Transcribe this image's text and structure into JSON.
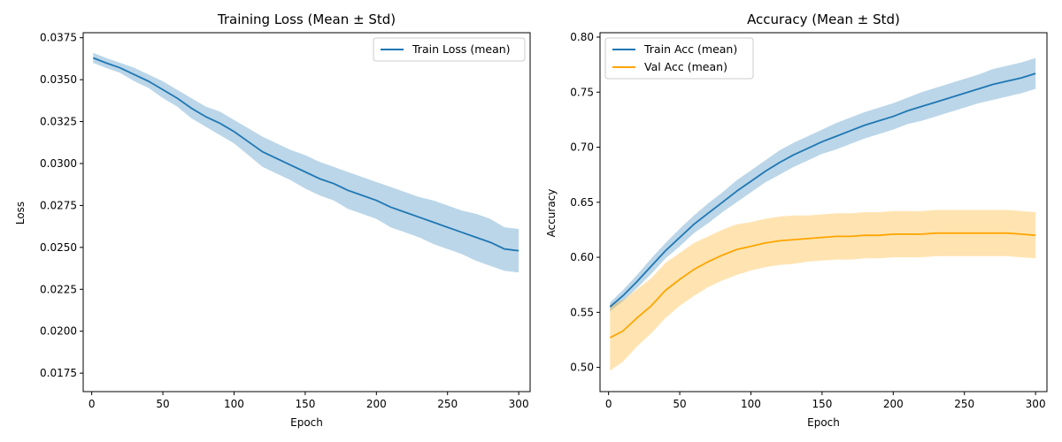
{
  "chart_data": [
    {
      "type": "line",
      "title": "Training Loss (Mean ± Std)",
      "xlabel": "Epoch",
      "ylabel": "Loss",
      "xlim": [
        -6,
        308
      ],
      "ylim": [
        0.0164,
        0.0378
      ],
      "xticks": [
        0,
        50,
        100,
        150,
        200,
        250,
        300
      ],
      "yticks": [
        0.0175,
        0.02,
        0.0225,
        0.025,
        0.0275,
        0.03,
        0.0325,
        0.035,
        0.0375
      ],
      "ytick_labels": [
        "0.0175",
        "0.0200",
        "0.0225",
        "0.0250",
        "0.0275",
        "0.0300",
        "0.0325",
        "0.0350",
        "0.0375"
      ],
      "legend_position": "upper right",
      "series": [
        {
          "name": "Train Loss (mean)",
          "color": "#1f77b4",
          "band_color": "#1f77b4",
          "x": [
            1,
            10,
            20,
            30,
            40,
            50,
            60,
            70,
            80,
            90,
            100,
            110,
            120,
            130,
            140,
            150,
            160,
            170,
            180,
            190,
            200,
            210,
            220,
            230,
            240,
            250,
            260,
            270,
            280,
            290,
            300
          ],
          "y": [
            0.0363,
            0.036,
            0.0357,
            0.0353,
            0.0349,
            0.0344,
            0.0339,
            0.0333,
            0.0328,
            0.0324,
            0.0319,
            0.0313,
            0.0307,
            0.0303,
            0.0299,
            0.0295,
            0.0291,
            0.0288,
            0.0284,
            0.0281,
            0.0278,
            0.0274,
            0.0271,
            0.0268,
            0.0265,
            0.0262,
            0.0259,
            0.0256,
            0.0253,
            0.0249,
            0.0248
          ],
          "std": [
            0.0003,
            0.0003,
            0.0003,
            0.0004,
            0.0004,
            0.0005,
            0.0005,
            0.0006,
            0.0006,
            0.0007,
            0.0007,
            0.0008,
            0.0009,
            0.0009,
            0.0009,
            0.001,
            0.001,
            0.001,
            0.0011,
            0.0011,
            0.0011,
            0.0012,
            0.0012,
            0.0012,
            0.0013,
            0.0013,
            0.0013,
            0.0014,
            0.0014,
            0.0013,
            0.0013
          ]
        }
      ]
    },
    {
      "type": "line",
      "title": "Accuracy (Mean ± Std)",
      "xlabel": "Epoch",
      "ylabel": "Accuracy",
      "xlim": [
        -6,
        308
      ],
      "ylim": [
        0.478,
        0.804
      ],
      "xticks": [
        0,
        50,
        100,
        150,
        200,
        250,
        300
      ],
      "yticks": [
        0.5,
        0.55,
        0.6,
        0.65,
        0.7,
        0.75,
        0.8
      ],
      "ytick_labels": [
        "0.50",
        "0.55",
        "0.60",
        "0.65",
        "0.70",
        "0.75",
        "0.80"
      ],
      "legend_position": "upper left",
      "series": [
        {
          "name": "Train Acc (mean)",
          "color": "#1f77b4",
          "band_color": "#1f77b4",
          "x": [
            1,
            10,
            20,
            30,
            40,
            50,
            60,
            70,
            80,
            90,
            100,
            110,
            120,
            130,
            140,
            150,
            160,
            170,
            180,
            190,
            200,
            210,
            220,
            230,
            240,
            250,
            260,
            270,
            280,
            290,
            300
          ],
          "y": [
            0.555,
            0.565,
            0.578,
            0.592,
            0.606,
            0.618,
            0.63,
            0.64,
            0.65,
            0.66,
            0.669,
            0.678,
            0.686,
            0.693,
            0.699,
            0.705,
            0.71,
            0.715,
            0.72,
            0.724,
            0.728,
            0.733,
            0.737,
            0.741,
            0.745,
            0.749,
            0.753,
            0.757,
            0.76,
            0.763,
            0.767
          ],
          "std": [
            0.004,
            0.005,
            0.006,
            0.007,
            0.007,
            0.008,
            0.008,
            0.009,
            0.009,
            0.01,
            0.01,
            0.01,
            0.011,
            0.011,
            0.011,
            0.011,
            0.012,
            0.012,
            0.012,
            0.012,
            0.012,
            0.012,
            0.013,
            0.013,
            0.013,
            0.013,
            0.013,
            0.014,
            0.014,
            0.014,
            0.014
          ]
        },
        {
          "name": "Val Acc (mean)",
          "color": "#ffa500",
          "band_color": "#ffa500",
          "x": [
            1,
            10,
            20,
            30,
            40,
            50,
            60,
            70,
            80,
            90,
            100,
            110,
            120,
            130,
            140,
            150,
            160,
            170,
            180,
            190,
            200,
            210,
            220,
            230,
            240,
            250,
            260,
            270,
            280,
            290,
            300
          ],
          "y": [
            0.527,
            0.533,
            0.545,
            0.556,
            0.57,
            0.58,
            0.589,
            0.596,
            0.602,
            0.607,
            0.61,
            0.613,
            0.615,
            0.616,
            0.617,
            0.618,
            0.619,
            0.619,
            0.62,
            0.62,
            0.621,
            0.621,
            0.621,
            0.622,
            0.622,
            0.622,
            0.622,
            0.622,
            0.622,
            0.621,
            0.62
          ],
          "std": [
            0.03,
            0.028,
            0.026,
            0.025,
            0.025,
            0.024,
            0.024,
            0.023,
            0.023,
            0.023,
            0.022,
            0.022,
            0.022,
            0.022,
            0.021,
            0.021,
            0.021,
            0.021,
            0.021,
            0.021,
            0.021,
            0.021,
            0.021,
            0.021,
            0.021,
            0.021,
            0.021,
            0.021,
            0.021,
            0.021,
            0.021
          ]
        }
      ]
    }
  ]
}
